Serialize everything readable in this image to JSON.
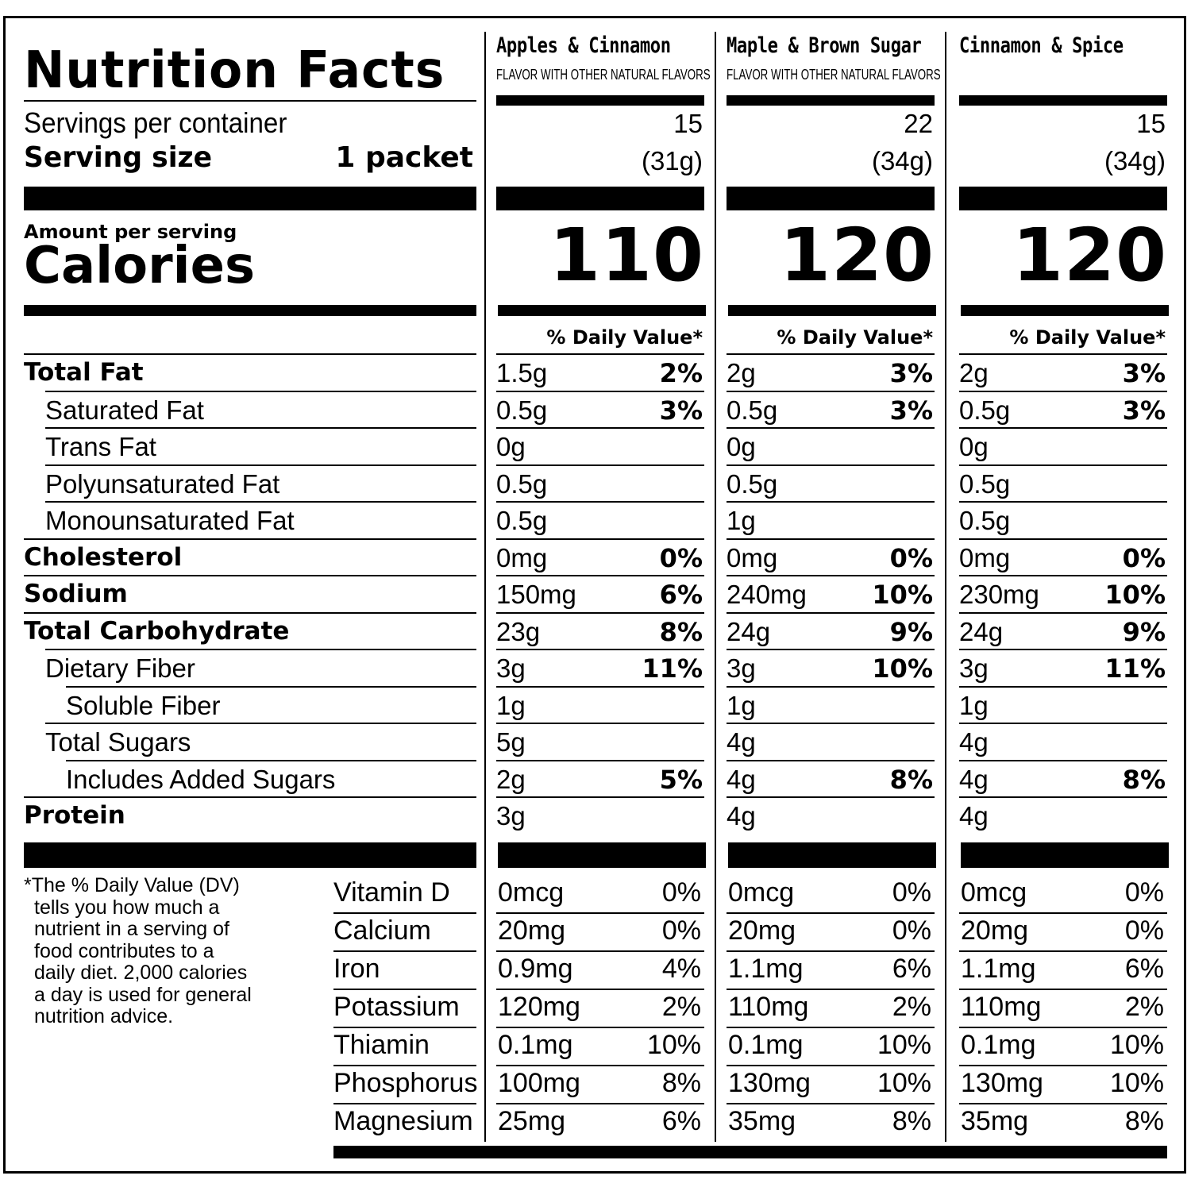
{
  "title": "Nutrition Facts",
  "servings_label": "Servings per container",
  "serving_size_label": "Serving size",
  "serving_size_value": "1 packet",
  "amount_per_serving": "Amount per serving",
  "calories_label": "Calories",
  "dv_header": "% Daily Value*",
  "products": [
    {
      "name": "Apples & Cinnamon",
      "subtitle": "FLAVOR WITH OTHER NATURAL FLAVORS",
      "servings": "15",
      "serving_weight": "(31g)",
      "calories": "110"
    },
    {
      "name": "Maple & Brown Sugar",
      "subtitle": "FLAVOR WITH OTHER NATURAL FLAVORS",
      "servings": "22",
      "serving_weight": "(34g)",
      "calories": "120"
    },
    {
      "name": "Cinnamon & Spice",
      "subtitle": "",
      "servings": "15",
      "serving_weight": "(34g)",
      "calories": "120"
    }
  ],
  "nutrients": [
    {
      "label": "Total Fat",
      "bold": true,
      "indent": 0,
      "values": [
        [
          "1.5g",
          "2%"
        ],
        [
          "2g",
          "3%"
        ],
        [
          "2g",
          "3%"
        ]
      ]
    },
    {
      "label": "Saturated Fat",
      "bold": false,
      "indent": 1,
      "values": [
        [
          "0.5g",
          "3%"
        ],
        [
          "0.5g",
          "3%"
        ],
        [
          "0.5g",
          "3%"
        ]
      ]
    },
    {
      "label": "Trans Fat",
      "bold": false,
      "indent": 1,
      "values": [
        [
          "0g",
          ""
        ],
        [
          "0g",
          ""
        ],
        [
          "0g",
          ""
        ]
      ]
    },
    {
      "label": "Polyunsaturated Fat",
      "bold": false,
      "indent": 1,
      "values": [
        [
          "0.5g",
          ""
        ],
        [
          "0.5g",
          ""
        ],
        [
          "0.5g",
          ""
        ]
      ]
    },
    {
      "label": "Monounsaturated Fat",
      "bold": false,
      "indent": 1,
      "values": [
        [
          "0.5g",
          ""
        ],
        [
          "1g",
          ""
        ],
        [
          "0.5g",
          ""
        ]
      ]
    },
    {
      "label": "Cholesterol",
      "bold": true,
      "indent": 0,
      "values": [
        [
          "0mg",
          "0%"
        ],
        [
          "0mg",
          "0%"
        ],
        [
          "0mg",
          "0%"
        ]
      ]
    },
    {
      "label": "Sodium",
      "bold": true,
      "indent": 0,
      "values": [
        [
          "150mg",
          "6%"
        ],
        [
          "240mg",
          "10%"
        ],
        [
          "230mg",
          "10%"
        ]
      ]
    },
    {
      "label": "Total Carbohydrate",
      "bold": true,
      "indent": 0,
      "values": [
        [
          "23g",
          "8%"
        ],
        [
          "24g",
          "9%"
        ],
        [
          "24g",
          "9%"
        ]
      ]
    },
    {
      "label": "Dietary Fiber",
      "bold": false,
      "indent": 1,
      "values": [
        [
          "3g",
          "11%"
        ],
        [
          "3g",
          "10%"
        ],
        [
          "3g",
          "11%"
        ]
      ]
    },
    {
      "label": "Soluble Fiber",
      "bold": false,
      "indent": 2,
      "values": [
        [
          "1g",
          ""
        ],
        [
          "1g",
          ""
        ],
        [
          "1g",
          ""
        ]
      ]
    },
    {
      "label": "Total Sugars",
      "bold": false,
      "indent": 1,
      "values": [
        [
          "5g",
          ""
        ],
        [
          "4g",
          ""
        ],
        [
          "4g",
          ""
        ]
      ]
    },
    {
      "label": "Includes Added Sugars",
      "bold": false,
      "indent": 2,
      "values": [
        [
          "2g",
          "5%"
        ],
        [
          "4g",
          "8%"
        ],
        [
          "4g",
          "8%"
        ]
      ]
    },
    {
      "label": "Protein",
      "bold": true,
      "indent": 0,
      "values": [
        [
          "3g",
          ""
        ],
        [
          "4g",
          ""
        ],
        [
          "4g",
          ""
        ]
      ]
    }
  ],
  "vitamins": [
    {
      "label": "Vitamin D",
      "values": [
        [
          "0mcg",
          "0%"
        ],
        [
          "0mcg",
          "0%"
        ],
        [
          "0mcg",
          "0%"
        ]
      ]
    },
    {
      "label": "Calcium",
      "values": [
        [
          "20mg",
          "0%"
        ],
        [
          "20mg",
          "0%"
        ],
        [
          "20mg",
          "0%"
        ]
      ]
    },
    {
      "label": "Iron",
      "values": [
        [
          "0.9mg",
          "4%"
        ],
        [
          "1.1mg",
          "6%"
        ],
        [
          "1.1mg",
          "6%"
        ]
      ]
    },
    {
      "label": "Potassium",
      "values": [
        [
          "120mg",
          "2%"
        ],
        [
          "110mg",
          "2%"
        ],
        [
          "110mg",
          "2%"
        ]
      ]
    },
    {
      "label": "Thiamin",
      "values": [
        [
          "0.1mg",
          "10%"
        ],
        [
          "0.1mg",
          "10%"
        ],
        [
          "0.1mg",
          "10%"
        ]
      ]
    },
    {
      "label": "Phosphorus",
      "values": [
        [
          "100mg",
          "8%"
        ],
        [
          "130mg",
          "10%"
        ],
        [
          "130mg",
          "10%"
        ]
      ]
    },
    {
      "label": "Magnesium",
      "values": [
        [
          "25mg",
          "6%"
        ],
        [
          "35mg",
          "8%"
        ],
        [
          "35mg",
          "8%"
        ]
      ]
    }
  ],
  "footnote_lines": [
    "*The % Daily Value (DV)",
    "tells you how much a",
    "nutrient in a serving of",
    "food contributes to a",
    "daily diet. 2,000 calories",
    "a day is used for general",
    "nutrition advice."
  ]
}
